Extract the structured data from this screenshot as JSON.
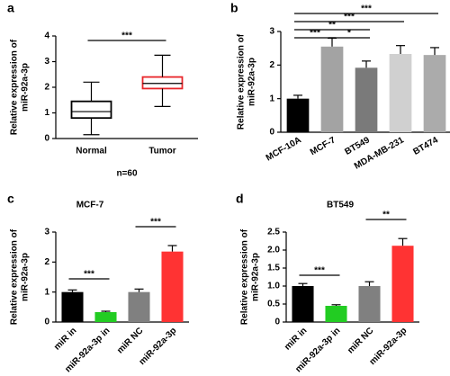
{
  "chart_data": [
    {
      "type": "box",
      "panel_label": "a",
      "ylabel": [
        "Relative expression of",
        "miR-92a-3p"
      ],
      "categories": [
        "Normal",
        "Tumor"
      ],
      "boxes": [
        {
          "min": 0.15,
          "q1": 0.8,
          "median": 1.05,
          "q3": 1.45,
          "max": 2.2
        },
        {
          "min": 1.25,
          "q1": 1.95,
          "median": 2.15,
          "q3": 2.4,
          "max": 3.25
        }
      ],
      "colors": [
        "#000000",
        "#e8262a"
      ],
      "ylim": [
        0,
        4
      ],
      "yticks": [
        0,
        1,
        2,
        3,
        4
      ],
      "annotations": [
        "***"
      ],
      "note": "n=60"
    },
    {
      "type": "bar",
      "panel_label": "b",
      "ylabel": [
        "Relative expression of",
        "miR-92a-3p"
      ],
      "categories": [
        "MCF-10A",
        "MCF-7",
        "BT549",
        "MDA-MB-231",
        "BT474"
      ],
      "values": [
        1.0,
        2.55,
        1.92,
        2.33,
        2.3
      ],
      "errors": [
        0.1,
        0.25,
        0.2,
        0.25,
        0.22
      ],
      "colors": [
        "#000000",
        "#a3a3a3",
        "#7a7a7a",
        "#d0d0d0",
        "#ababab"
      ],
      "ylim": [
        0,
        3
      ],
      "yticks": [
        0,
        1,
        2,
        3
      ],
      "annotations": [
        "***",
        "***",
        "**",
        "***",
        "*"
      ]
    },
    {
      "type": "bar",
      "panel_label": "c",
      "title": "MCF-7",
      "ylabel": [
        "Relative expression of",
        "miR-92a-3p"
      ],
      "categories": [
        "miR in",
        "miR-92a-3p in",
        "miR NC",
        "miR-92a-3p"
      ],
      "values": [
        1.0,
        0.33,
        1.0,
        2.35
      ],
      "errors": [
        0.07,
        0.03,
        0.1,
        0.2
      ],
      "colors": [
        "#000000",
        "#22cc22",
        "#808080",
        "#ff3333"
      ],
      "ylim": [
        0,
        3
      ],
      "yticks": [
        0,
        1,
        2,
        3
      ],
      "annotations": [
        "***",
        "***"
      ]
    },
    {
      "type": "bar",
      "panel_label": "d",
      "title": "BT549",
      "ylabel": [
        "Relative expression of",
        "miR-92a-3p"
      ],
      "categories": [
        "miR in",
        "miR-92a-3p in",
        "miR NC",
        "miR-92a-3p"
      ],
      "values": [
        1.0,
        0.45,
        1.0,
        2.12
      ],
      "errors": [
        0.07,
        0.03,
        0.12,
        0.2
      ],
      "colors": [
        "#000000",
        "#22cc22",
        "#808080",
        "#ff3333"
      ],
      "ylim": [
        0,
        2.5
      ],
      "yticks": [
        0,
        0.5,
        {
          "value": 1,
          "label": "1.0"
        },
        1.5,
        {
          "value": 2,
          "label": "2.0"
        },
        2.5
      ],
      "annotations": [
        "***",
        "**"
      ]
    }
  ]
}
